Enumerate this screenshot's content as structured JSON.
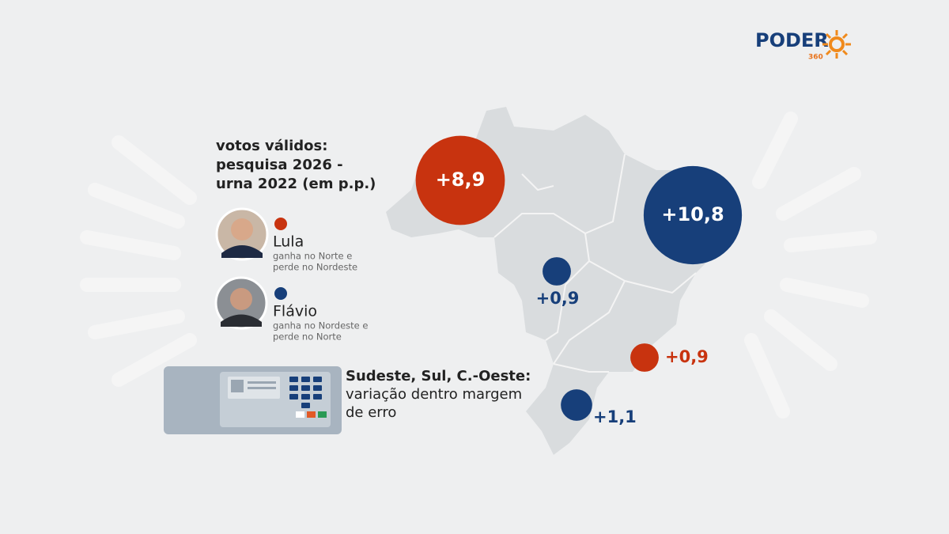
{
  "logo": {
    "name": "PODER",
    "sub": "360"
  },
  "legend": {
    "title_lines": [
      "votos válidos:",
      "pesquisa 2026 -",
      "urna 2022 (em p.p.)"
    ],
    "candidates": [
      {
        "name": "Lula",
        "color": "#c8330f",
        "note_lines": [
          "ganha no Norte e",
          "perde no Nordeste"
        ]
      },
      {
        "name": "Flávio",
        "color": "#173f7a",
        "note_lines": [
          "ganha no Nordeste e",
          "perde no Norte"
        ]
      }
    ]
  },
  "note": {
    "bold": "Sudeste, Sul, C.-Oeste:",
    "lines": [
      "variação dentro margem",
      "de erro"
    ]
  },
  "regions": [
    {
      "label": "+8,9",
      "value": 8.9,
      "color": "#c8330f"
    },
    {
      "label": "+10,8",
      "value": 10.8,
      "color": "#173f7a"
    },
    {
      "label": "+0,9",
      "value": 0.9,
      "color": "#173f7a"
    },
    {
      "label": "+0,9",
      "value": 0.9,
      "color": "#c8330f"
    },
    {
      "label": "+1,1",
      "value": 1.1,
      "color": "#173f7a"
    }
  ]
}
